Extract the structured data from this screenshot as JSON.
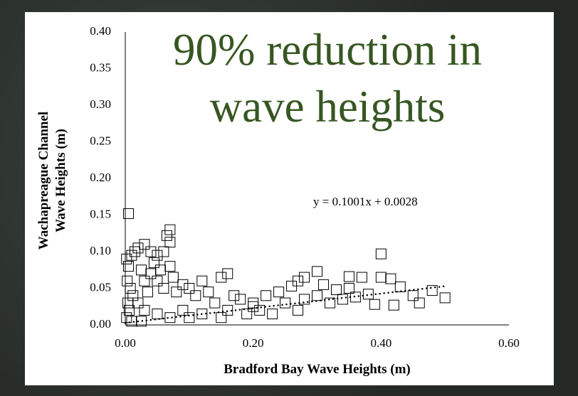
{
  "chart_data": {
    "type": "scatter",
    "annotation": "90% reduction in wave heights",
    "xlabel": "Bradford Bay Wave Heights (m)",
    "ylabel": "Wachapreague Channel Wave Heights (m)",
    "color": "#000000",
    "x": [
      0.005,
      0.07,
      0.065,
      0.07,
      0.4,
      0.5,
      0.48,
      0.46,
      0.45,
      0.43,
      0.415,
      0.4,
      0.37,
      0.35,
      0.3,
      0.28,
      0.27,
      0.26,
      0.39,
      0.42,
      0.38,
      0.36,
      0.33,
      0.002,
      0.005,
      0.01,
      0.015,
      0.02,
      0.03,
      0.04,
      0.05,
      0.06,
      0.045,
      0.025,
      0.003,
      0.008,
      0.012,
      0.004,
      0.006,
      0.002,
      0.01,
      0.02,
      0.03,
      0.035,
      0.04,
      0.05,
      0.055,
      0.06,
      0.07,
      0.075,
      0.08,
      0.09,
      0.1,
      0.11,
      0.12,
      0.13,
      0.15,
      0.16,
      0.14,
      0.17,
      0.18,
      0.2,
      0.22,
      0.24,
      0.21,
      0.19,
      0.16,
      0.12,
      0.09,
      0.07,
      0.05,
      0.03,
      0.025,
      0.1,
      0.15,
      0.2,
      0.25,
      0.28,
      0.3,
      0.32,
      0.27,
      0.23,
      0.35,
      0.34,
      0.31
    ],
    "values": [
      0.152,
      0.13,
      0.122,
      0.113,
      0.097,
      0.037,
      0.047,
      0.03,
      0.04,
      0.052,
      0.063,
      0.065,
      0.065,
      0.066,
      0.073,
      0.065,
      0.06,
      0.053,
      0.028,
      0.027,
      0.042,
      0.038,
      0.048,
      0.09,
      0.08,
      0.095,
      0.1,
      0.105,
      0.11,
      0.1,
      0.095,
      0.1,
      0.085,
      0.075,
      0.06,
      0.05,
      0.04,
      0.03,
      0.02,
      0.01,
      0.005,
      0.03,
      0.06,
      0.045,
      0.07,
      0.06,
      0.075,
      0.05,
      0.08,
      0.065,
      0.045,
      0.055,
      0.05,
      0.04,
      0.06,
      0.045,
      0.065,
      0.07,
      0.03,
      0.04,
      0.035,
      0.03,
      0.04,
      0.045,
      0.02,
      0.015,
      0.02,
      0.015,
      0.02,
      0.01,
      0.015,
      0.02,
      0.005,
      0.01,
      0.01,
      0.025,
      0.03,
      0.035,
      0.04,
      0.03,
      0.02,
      0.015,
      0.05,
      0.035,
      0.055
    ],
    "trendline": {
      "slope": 0.1001,
      "intercept": 0.0028,
      "xrange": [
        0,
        0.5
      ],
      "label": "y = 0.1001x + 0.0028"
    },
    "xlim": [
      0,
      0.6
    ],
    "xticks": [
      {
        "value": 0,
        "label": "0.00"
      },
      {
        "value": 0.2,
        "label": "0.20"
      },
      {
        "value": 0.4,
        "label": "0.40"
      },
      {
        "value": 0.6,
        "label": "0.60"
      }
    ],
    "ylim": [
      0,
      0.4
    ],
    "yticks": [
      {
        "value": 0,
        "label": "0.00"
      },
      {
        "value": 0.05,
        "label": "0.05"
      },
      {
        "value": 0.1,
        "label": "0.10"
      },
      {
        "value": 0.15,
        "label": "0.15"
      },
      {
        "value": 0.2,
        "label": "0.20"
      },
      {
        "value": 0.25,
        "label": "0.25"
      },
      {
        "value": 0.3,
        "label": "0.30"
      },
      {
        "value": 0.35,
        "label": "0.35"
      },
      {
        "value": 0.4,
        "label": "0.40"
      }
    ]
  }
}
